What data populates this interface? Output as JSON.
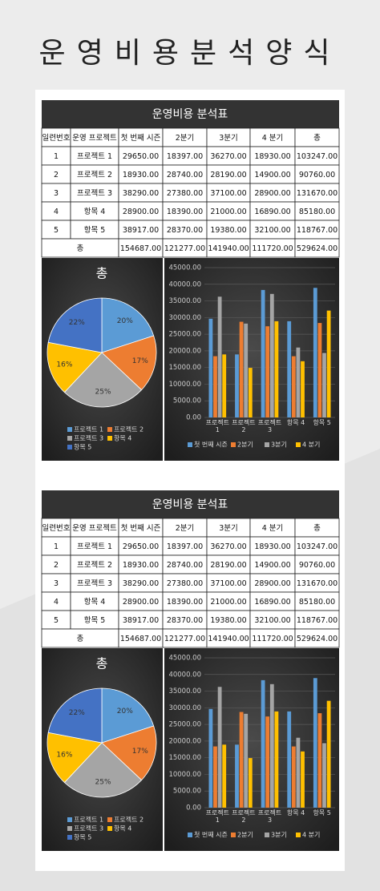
{
  "title": "운영비용분석양식",
  "sheets": [
    {
      "table": {
        "title": "운영비용 분석표",
        "header": [
          "일련번호",
          "운영 프로젝트",
          "첫 번째 시즌",
          "2분기",
          "3분기",
          "4 분기",
          "총"
        ],
        "rows": [
          [
            "1",
            "프로젝트 1",
            "29650.00",
            "18397.00",
            "36270.00",
            "18930.00",
            "103247.00"
          ],
          [
            "2",
            "프로젝트 2",
            "18930.00",
            "28740.00",
            "28190.00",
            "14900.00",
            "90760.00"
          ],
          [
            "3",
            "프로젝트 3",
            "38290.00",
            "27380.00",
            "37100.00",
            "28900.00",
            "131670.00"
          ],
          [
            "4",
            "항목 4",
            "28900.00",
            "18390.00",
            "21000.00",
            "16890.00",
            "85180.00"
          ],
          [
            "5",
            "항목 5",
            "38917.00",
            "28370.00",
            "19380.00",
            "32100.00",
            "118767.00"
          ]
        ],
        "total": [
          "총",
          "154687.00",
          "121277.00",
          "141940.00",
          "111720.00",
          "529624.00"
        ]
      },
      "pie_chart": {
        "type": "pie",
        "title": "총",
        "categories": [
          "프로젝트 1",
          "프로젝트 2",
          "프로젝트 3",
          "항목 4",
          "항목 5"
        ],
        "values": [
          20,
          17,
          25,
          16,
          22
        ],
        "value_labels": [
          "20%",
          "17%",
          "25%",
          "16%",
          "22%"
        ],
        "colors": [
          "#5b9bd5",
          "#ed7d31",
          "#a5a5a5",
          "#ffc000",
          "#4472c4"
        ]
      },
      "bar_chart": {
        "type": "bar",
        "categories": [
          "프로젝트 1",
          "프로젝트 2",
          "프로젝트 3",
          "항목 4",
          "항목 5"
        ],
        "series": [
          {
            "name": "첫 번째 시즌",
            "color": "#5b9bd5",
            "values": [
              29650,
              18930,
              38290,
              28900,
              38917
            ]
          },
          {
            "name": "2분기",
            "color": "#ed7d31",
            "values": [
              18397,
              28740,
              27380,
              18390,
              28370
            ]
          },
          {
            "name": "3분기",
            "color": "#a5a5a5",
            "values": [
              36270,
              28190,
              37100,
              21000,
              19380
            ]
          },
          {
            "name": "4 분기",
            "color": "#ffc000",
            "values": [
              18930,
              14900,
              28900,
              16890,
              32100
            ]
          }
        ],
        "ylim": [
          0,
          45000
        ],
        "yticks": [
          {
            "value": 0,
            "label": "0.00"
          },
          {
            "value": 5000,
            "label": "5000.00"
          },
          {
            "value": 10000,
            "label": "10000.00"
          },
          {
            "value": 15000,
            "label": "15000.00"
          },
          {
            "value": 20000,
            "label": "20000.00"
          },
          {
            "value": 25000,
            "label": "25000.00"
          },
          {
            "value": 30000,
            "label": "30000.00"
          },
          {
            "value": 35000,
            "label": "35000.00"
          },
          {
            "value": 40000,
            "label": "40000.00"
          },
          {
            "value": 45000,
            "label": "45000.00"
          }
        ],
        "grid": true
      }
    },
    {
      "table": {
        "title": "운영비용 분석표",
        "header": [
          "일련번호",
          "운영 프로젝트",
          "첫 번째 시즌",
          "2분기",
          "3분기",
          "4 분기",
          "총"
        ],
        "rows": [
          [
            "1",
            "프로젝트 1",
            "29650.00",
            "18397.00",
            "36270.00",
            "18930.00",
            "103247.00"
          ],
          [
            "2",
            "프로젝트 2",
            "18930.00",
            "28740.00",
            "28190.00",
            "14900.00",
            "90760.00"
          ],
          [
            "3",
            "프로젝트 3",
            "38290.00",
            "27380.00",
            "37100.00",
            "28900.00",
            "131670.00"
          ],
          [
            "4",
            "항목 4",
            "28900.00",
            "18390.00",
            "21000.00",
            "16890.00",
            "85180.00"
          ],
          [
            "5",
            "항목 5",
            "38917.00",
            "28370.00",
            "19380.00",
            "32100.00",
            "118767.00"
          ]
        ],
        "total": [
          "총",
          "154687.00",
          "121277.00",
          "141940.00",
          "111720.00",
          "529624.00"
        ]
      },
      "pie_chart": {
        "type": "pie",
        "title": "총",
        "categories": [
          "프로젝트 1",
          "프로젝트 2",
          "프로젝트 3",
          "항목 4",
          "항목 5"
        ],
        "values": [
          20,
          17,
          25,
          16,
          22
        ],
        "value_labels": [
          "20%",
          "17%",
          "25%",
          "16%",
          "22%"
        ],
        "colors": [
          "#5b9bd5",
          "#ed7d31",
          "#a5a5a5",
          "#ffc000",
          "#4472c4"
        ]
      },
      "bar_chart": {
        "type": "bar",
        "categories": [
          "프로젝트 1",
          "프로젝트 2",
          "프로젝트 3",
          "항목 4",
          "항목 5"
        ],
        "series": [
          {
            "name": "첫 번째 시즌",
            "color": "#5b9bd5",
            "values": [
              29650,
              18930,
              38290,
              28900,
              38917
            ]
          },
          {
            "name": "2분기",
            "color": "#ed7d31",
            "values": [
              18397,
              28740,
              27380,
              18390,
              28370
            ]
          },
          {
            "name": "3분기",
            "color": "#a5a5a5",
            "values": [
              36270,
              28190,
              37100,
              21000,
              19380
            ]
          },
          {
            "name": "4 분기",
            "color": "#ffc000",
            "values": [
              18930,
              14900,
              28900,
              16890,
              32100
            ]
          }
        ],
        "ylim": [
          0,
          45000
        ],
        "yticks": [
          {
            "value": 0,
            "label": "0.00"
          },
          {
            "value": 5000,
            "label": "5000.00"
          },
          {
            "value": 10000,
            "label": "10000.00"
          },
          {
            "value": 15000,
            "label": "15000.00"
          },
          {
            "value": 20000,
            "label": "20000.00"
          },
          {
            "value": 25000,
            "label": "25000.00"
          },
          {
            "value": 30000,
            "label": "30000.00"
          },
          {
            "value": 35000,
            "label": "35000.00"
          },
          {
            "value": 40000,
            "label": "40000.00"
          },
          {
            "value": 45000,
            "label": "45000.00"
          }
        ],
        "grid": true
      }
    }
  ]
}
